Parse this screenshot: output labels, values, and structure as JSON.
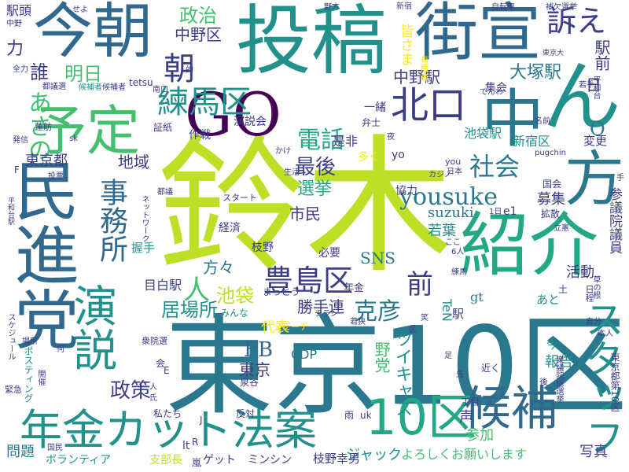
{
  "palette": {
    "dark_purple": "#440154",
    "indigo": "#3b3d86",
    "blue": "#31688e",
    "teal_blue": "#2a788e",
    "teal": "#21918c",
    "green_teal": "#22a884",
    "green": "#44bf70",
    "light_green": "#7ad151",
    "yellow_green": "#bddf26",
    "yellow": "#fde725"
  },
  "words": [
    {
      "text": "鈴木",
      "color": "yellow_green"
    },
    {
      "text": "東京10区",
      "color": "teal_blue"
    },
    {
      "text": "民進党",
      "color": "blue"
    },
    {
      "text": "投稿",
      "color": "teal"
    },
    {
      "text": "今朝",
      "color": "blue"
    },
    {
      "text": "GO",
      "color": "dark_purple"
    },
    {
      "text": "街宣",
      "color": "blue"
    },
    {
      "text": "中",
      "color": "teal_blue"
    },
    {
      "text": "ん",
      "color": "teal"
    },
    {
      "text": "紹介",
      "color": "green_teal"
    },
    {
      "text": "方",
      "color": "teal_blue"
    },
    {
      "text": "予定",
      "color": "green"
    },
    {
      "text": "演説",
      "color": "teal"
    },
    {
      "text": "事務所",
      "color": "blue"
    },
    {
      "text": "年金カット法案",
      "color": "teal"
    },
    {
      "text": "10区",
      "color": "green_teal"
    },
    {
      "text": "候補",
      "color": "blue"
    },
    {
      "text": "スタッフ",
      "color": "teal"
    },
    {
      "text": "北口",
      "color": "indigo"
    },
    {
      "text": "練馬区",
      "color": "teal"
    },
    {
      "text": "訴え",
      "color": "indigo"
    },
    {
      "text": "朝",
      "color": "indigo"
    },
    {
      "text": "豊島区",
      "color": "indigo"
    },
    {
      "text": "yousuke",
      "color": "teal_blue"
    },
    {
      "text": "社会",
      "color": "teal_blue"
    },
    {
      "text": "中野区",
      "color": "indigo"
    },
    {
      "text": "政治",
      "color": "green"
    },
    {
      "text": "明日",
      "color": "green"
    },
    {
      "text": "誰",
      "color": "indigo"
    },
    {
      "text": "あさの",
      "color": "green"
    },
    {
      "text": "力",
      "color": "indigo"
    },
    {
      "text": "電話",
      "color": "green_teal"
    },
    {
      "text": "最後",
      "color": "indigo"
    },
    {
      "text": "中野駅",
      "color": "indigo"
    },
    {
      "text": "大塚駅",
      "color": "teal_blue"
    },
    {
      "text": "皆さま",
      "color": "yellow"
    },
    {
      "text": "駅前",
      "color": "indigo"
    },
    {
      "text": "日",
      "color": "indigo"
    },
    {
      "text": "O",
      "color": "teal_blue"
    },
    {
      "text": "選挙",
      "color": "green_teal"
    },
    {
      "text": "東京都",
      "color": "indigo"
    },
    {
      "text": "地域",
      "color": "indigo"
    },
    {
      "text": "市民",
      "color": "indigo"
    },
    {
      "text": "人",
      "color": "green"
    },
    {
      "text": "前",
      "color": "indigo"
    },
    {
      "text": "政策",
      "color": "indigo"
    },
    {
      "text": "FB",
      "color": "blue"
    },
    {
      "text": "東京",
      "color": "indigo"
    },
    {
      "text": "居場所",
      "color": "teal"
    },
    {
      "text": "代表",
      "color": "yellow"
    },
    {
      "text": "池袋",
      "color": "yellow_green"
    },
    {
      "text": "方々",
      "color": "teal_blue"
    },
    {
      "text": "勝手連",
      "color": "indigo"
    },
    {
      "text": "克彦",
      "color": "teal_blue"
    },
    {
      "text": "活動",
      "color": "indigo"
    },
    {
      "text": "募集",
      "color": "indigo"
    },
    {
      "text": "参議院議員",
      "color": "indigo"
    },
    {
      "text": "SNS",
      "color": "teal_blue"
    },
    {
      "text": "若葉",
      "color": "teal"
    },
    {
      "text": "suzuki",
      "color": "teal_blue"
    },
    {
      "text": "ツイキャス",
      "color": "teal"
    },
    {
      "text": "野党",
      "color": "green"
    },
    {
      "text": "CDP",
      "color": "teal_blue"
    },
    {
      "text": "候補者",
      "color": "teal"
    },
    {
      "text": "報告",
      "color": "teal"
    },
    {
      "text": "参加",
      "color": "green"
    },
    {
      "text": "声",
      "color": "indigo"
    },
    {
      "text": "写真",
      "color": "indigo"
    },
    {
      "text": "よろしくお願いします",
      "color": "green"
    },
    {
      "text": "ジャック",
      "color": "teal"
    },
    {
      "text": "問題",
      "color": "teal_blue"
    },
    {
      "text": "ボランティア",
      "color": "teal"
    },
    {
      "text": "支部長",
      "color": "yellow_green"
    },
    {
      "text": "ゲット",
      "color": "indigo"
    },
    {
      "text": "ミンシン",
      "color": "indigo"
    },
    {
      "text": "枝野幸男",
      "color": "indigo"
    },
    {
      "text": "目白駅",
      "color": "indigo"
    },
    {
      "text": "池袋駅",
      "color": "teal"
    },
    {
      "text": "新宿区",
      "color": "teal"
    },
    {
      "text": "是非",
      "color": "indigo"
    },
    {
      "text": "多く",
      "color": "yellow"
    },
    {
      "text": "変更",
      "color": "indigo"
    },
    {
      "text": "一緒",
      "color": "indigo"
    },
    {
      "text": "集会",
      "color": "indigo"
    },
    {
      "text": "演説会",
      "color": "indigo"
    },
    {
      "text": "作戦",
      "color": "indigo"
    },
    {
      "text": "証紙",
      "color": "indigo"
    },
    {
      "text": "経済",
      "color": "indigo"
    },
    {
      "text": "枝野",
      "color": "indigo"
    },
    {
      "text": "必要",
      "color": "indigo"
    },
    {
      "text": "みんな",
      "color": "teal"
    },
    {
      "text": "年金",
      "color": "indigo"
    },
    {
      "text": "あと",
      "color": "teal"
    },
    {
      "text": "gt",
      "color": "teal_blue"
    },
    {
      "text": "TeN",
      "color": "teal"
    },
    {
      "text": "駅",
      "color": "indigo"
    },
    {
      "text": "今",
      "color": "teal"
    },
    {
      "text": "拡散",
      "color": "indigo"
    },
    {
      "text": "立憲",
      "color": "indigo"
    },
    {
      "text": "e1",
      "color": "indigo"
    },
    {
      "text": "1日",
      "color": "indigo"
    },
    {
      "text": "国会",
      "color": "indigo"
    },
    {
      "text": "日本",
      "color": "indigo"
    },
    {
      "text": "you",
      "color": "indigo"
    },
    {
      "text": "yo",
      "color": "indigo"
    },
    {
      "text": "協力",
      "color": "indigo"
    },
    {
      "text": "まっとう",
      "color": "indigo"
    },
    {
      "text": "スタート",
      "color": "indigo"
    },
    {
      "text": "都議",
      "color": "indigo"
    },
    {
      "text": "投票",
      "color": "indigo"
    },
    {
      "text": "生活",
      "color": "indigo"
    },
    {
      "text": "握手",
      "color": "teal"
    },
    {
      "text": "ネットワーク",
      "color": "indigo"
    },
    {
      "text": "平和台駅",
      "color": "indigo"
    },
    {
      "text": "かけ",
      "color": "indigo"
    },
    {
      "text": "F",
      "color": "indigo"
    },
    {
      "text": "発信",
      "color": "indigo"
    },
    {
      "text": "sk",
      "color": "indigo"
    },
    {
      "text": "蓮舫",
      "color": "indigo"
    },
    {
      "text": "南口",
      "color": "indigo"
    },
    {
      "text": "tetsu",
      "color": "indigo"
    },
    {
      "text": "候補者",
      "color": "indigo"
    },
    {
      "text": "都議選",
      "color": "indigo"
    },
    {
      "text": "全力",
      "color": "indigo"
    },
    {
      "text": "駅頭",
      "color": "indigo"
    },
    {
      "text": "中野",
      "color": "indigo"
    },
    {
      "text": "せよ",
      "color": "indigo"
    },
    {
      "text": "野方",
      "color": "indigo"
    },
    {
      "text": "新宿",
      "color": "indigo"
    },
    {
      "text": "自転車",
      "color": "indigo"
    },
    {
      "text": "補欠選挙",
      "color": "indigo"
    },
    {
      "text": "的",
      "color": "indigo"
    },
    {
      "text": "でんわ",
      "color": "indigo"
    },
    {
      "text": "有権者",
      "color": "yellow"
    },
    {
      "text": "東京大",
      "color": "indigo"
    },
    {
      "text": "若手",
      "color": "indigo"
    },
    {
      "text": "平和台",
      "color": "indigo"
    },
    {
      "text": "名前",
      "color": "indigo"
    },
    {
      "text": "弁士",
      "color": "indigo"
    },
    {
      "text": "夜",
      "color": "indigo"
    },
    {
      "text": "pugchin",
      "color": "indigo"
    },
    {
      "text": "カジノ",
      "color": "indigo"
    },
    {
      "text": "手",
      "color": "indigo"
    },
    {
      "text": "ここ",
      "color": "indigo"
    },
    {
      "text": "6人",
      "color": "indigo"
    },
    {
      "text": "練馬",
      "color": "indigo"
    },
    {
      "text": "草の根",
      "color": "indigo"
    },
    {
      "text": "日程",
      "color": "indigo"
    },
    {
      "text": "土",
      "color": "indigo"
    },
    {
      "text": "チラシ",
      "color": "indigo"
    },
    {
      "text": "若狭",
      "color": "indigo"
    },
    {
      "text": "スピーチ",
      "color": "yellow"
    },
    {
      "text": "自分",
      "color": "indigo"
    },
    {
      "text": "本人",
      "color": "indigo"
    },
    {
      "text": "笑",
      "color": "indigo"
    },
    {
      "text": "区",
      "color": "indigo"
    },
    {
      "text": "衆院選",
      "color": "indigo"
    },
    {
      "text": "スケジュール",
      "color": "indigo"
    },
    {
      "text": "場所",
      "color": "indigo"
    },
    {
      "text": "ポスティング",
      "color": "teal"
    },
    {
      "text": "何",
      "color": "indigo"
    },
    {
      "text": "開催",
      "color": "indigo"
    },
    {
      "text": "緊急",
      "color": "indigo"
    },
    {
      "text": "会",
      "color": "indigo"
    },
    {
      "text": "E",
      "color": "indigo"
    },
    {
      "text": "一人",
      "color": "indigo"
    },
    {
      "text": "氏",
      "color": "indigo"
    },
    {
      "text": "泉谷",
      "color": "indigo"
    },
    {
      "text": "衆議院総選挙",
      "color": "indigo"
    },
    {
      "text": "東京都第10区",
      "color": "indigo"
    },
    {
      "text": "近く",
      "color": "indigo"
    },
    {
      "text": "後",
      "color": "indigo"
    },
    {
      "text": "先",
      "color": "indigo"
    },
    {
      "text": "足",
      "color": "indigo"
    },
    {
      "text": "私たち",
      "color": "indigo"
    },
    {
      "text": "反対",
      "color": "indigo"
    },
    {
      "text": "J",
      "color": "indigo"
    },
    {
      "text": "R",
      "color": "indigo"
    },
    {
      "text": "lt",
      "color": "indigo"
    },
    {
      "text": "雨",
      "color": "indigo"
    },
    {
      "text": "uk",
      "color": "indigo"
    },
    {
      "text": "丁目",
      "color": "indigo"
    },
    {
      "text": "国民",
      "color": "indigo"
    },
    {
      "text": "嵐",
      "color": "indigo"
    }
  ]
}
